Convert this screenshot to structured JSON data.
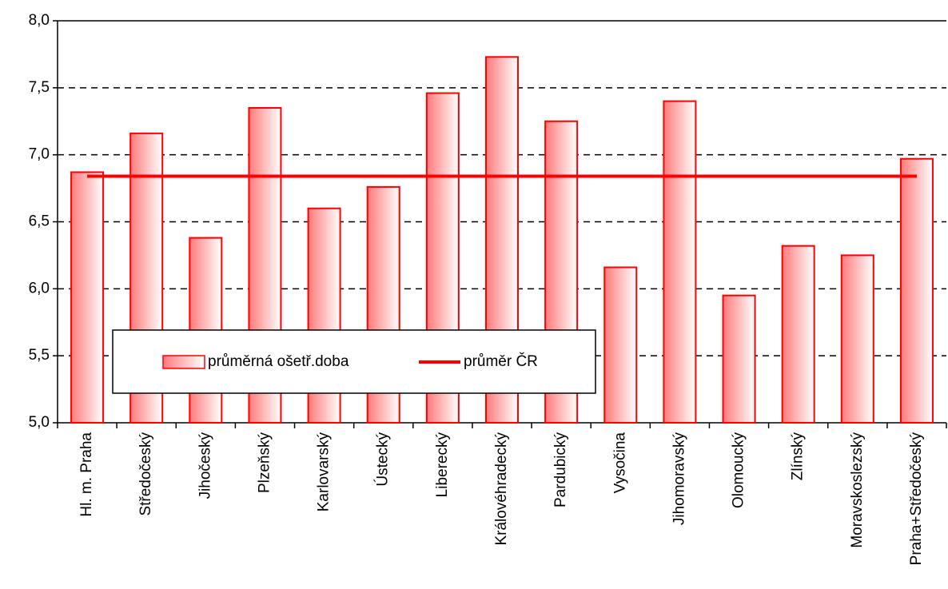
{
  "chart_data": {
    "type": "bar",
    "categories": [
      "Hl. m. Praha",
      "Středočeský",
      "Jihočeský",
      "Plzeňský",
      "Karlovarský",
      "Ústecký",
      "Liberecký",
      "Královéhradecký",
      "Pardubický",
      "Vysočina",
      "Jihomoravský",
      "Olomoucký",
      "Zlínský",
      "Moravskoslezský",
      "Praha+Středočeský"
    ],
    "series": [
      {
        "name": "průměrná ošetř.doba",
        "type": "bar",
        "color": "#ff0000",
        "values": [
          6.87,
          7.16,
          6.38,
          7.35,
          6.6,
          6.76,
          7.46,
          7.73,
          7.25,
          6.16,
          7.4,
          5.95,
          6.32,
          6.25,
          6.97
        ]
      },
      {
        "name": "průměr ČR",
        "type": "line",
        "color": "#ff0000",
        "values": [
          6.84,
          6.84,
          6.84,
          6.84,
          6.84,
          6.84,
          6.84,
          6.84,
          6.84,
          6.84,
          6.84,
          6.84,
          6.84,
          6.84,
          6.84
        ]
      }
    ],
    "ylim": [
      5,
      8
    ],
    "yticks": [
      {
        "value": 5,
        "label": "5,0"
      },
      {
        "value": 5.5,
        "label": "5,5"
      },
      {
        "value": 6,
        "label": "6,0"
      },
      {
        "value": 6.5,
        "label": "6,5"
      },
      {
        "value": 7,
        "label": "7,0"
      },
      {
        "value": 7.5,
        "label": "7,5"
      },
      {
        "value": 8,
        "label": "8,0"
      }
    ],
    "grid": true,
    "legend": "inside-bottom-left"
  }
}
